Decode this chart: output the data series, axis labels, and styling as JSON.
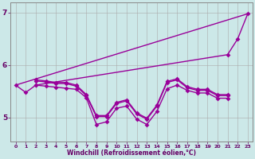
{
  "background_color": "#cce8e8",
  "line_color": "#990099",
  "grid_color": "#aaaaaa",
  "xlabel": "Windchill (Refroidissement éolien,°C)",
  "xlabel_color": "#660066",
  "tick_color": "#660066",
  "xlim": [
    -0.5,
    23.5
  ],
  "ylim": [
    4.55,
    7.2
  ],
  "yticks": [
    5,
    6,
    7
  ],
  "xticks": [
    0,
    1,
    2,
    3,
    4,
    5,
    6,
    7,
    8,
    9,
    10,
    11,
    12,
    13,
    14,
    15,
    16,
    17,
    18,
    19,
    20,
    21,
    22,
    23
  ],
  "linewidth": 1.0,
  "markersize": 3.0,
  "series": {
    "line1_x": [
      0,
      1,
      2,
      3,
      4,
      5,
      6,
      7,
      8,
      9,
      10,
      11,
      12,
      13,
      14,
      15,
      16,
      17,
      18,
      19,
      20,
      21
    ],
    "line1_y": [
      5.62,
      5.48,
      5.62,
      5.6,
      5.58,
      5.56,
      5.54,
      5.38,
      4.87,
      4.92,
      5.18,
      5.22,
      4.97,
      4.87,
      5.12,
      5.55,
      5.62,
      5.52,
      5.47,
      5.47,
      5.37,
      5.37
    ],
    "line2_x": [
      0,
      23
    ],
    "line2_y": [
      5.62,
      6.98
    ],
    "line3_x": [
      2,
      21,
      22,
      23
    ],
    "line3_y": [
      5.62,
      6.2,
      6.5,
      6.98
    ],
    "line4_x": [
      2,
      3,
      4,
      5,
      6,
      7,
      8,
      9,
      10,
      11,
      12,
      13,
      14,
      15,
      16,
      17,
      18,
      19,
      20,
      21
    ],
    "line4_y": [
      5.7,
      5.68,
      5.65,
      5.65,
      5.6,
      5.42,
      5.02,
      5.02,
      5.27,
      5.32,
      5.07,
      4.97,
      5.22,
      5.67,
      5.72,
      5.57,
      5.52,
      5.52,
      5.42,
      5.42
    ],
    "line5_x": [
      2,
      3,
      4,
      5,
      6,
      7,
      8,
      9,
      10,
      11,
      12,
      13,
      14,
      15,
      16,
      17,
      18,
      19,
      20,
      21
    ],
    "line5_y": [
      5.72,
      5.7,
      5.67,
      5.67,
      5.62,
      5.44,
      5.04,
      5.04,
      5.29,
      5.34,
      5.09,
      4.99,
      5.24,
      5.69,
      5.74,
      5.59,
      5.54,
      5.54,
      5.44,
      5.44
    ]
  }
}
